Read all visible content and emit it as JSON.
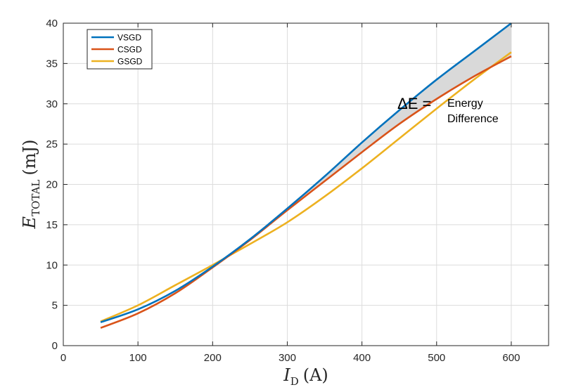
{
  "chart_data": {
    "type": "line",
    "xlabel": {
      "main": "I",
      "sub": "D",
      "unit": "(A)"
    },
    "ylabel": {
      "main": "E",
      "sub": "TOTAL",
      "unit": "(mJ)"
    },
    "xlim": [
      0,
      650
    ],
    "ylim": [
      0,
      40
    ],
    "xticks": [
      0,
      100,
      200,
      300,
      400,
      500,
      600
    ],
    "yticks": [
      0,
      5,
      10,
      15,
      20,
      25,
      30,
      35,
      40
    ],
    "grid": true,
    "legend_position": "top-left",
    "x": [
      50,
      100,
      150,
      200,
      250,
      300,
      350,
      400,
      450,
      500,
      550,
      600
    ],
    "series": [
      {
        "name": "VSGD",
        "color": "#0072BD",
        "values": [
          2.9,
          4.5,
          6.8,
          9.8,
          13.2,
          17.0,
          21.0,
          25.2,
          29.2,
          33.0,
          36.5,
          40.0
        ]
      },
      {
        "name": "CSGD",
        "color": "#D95319",
        "values": [
          2.2,
          4.0,
          6.5,
          9.7,
          13.1,
          16.8,
          20.4,
          24.0,
          27.5,
          30.6,
          33.4,
          35.9
        ]
      },
      {
        "name": "GSGD",
        "color": "#EDB120",
        "values": [
          3.0,
          5.0,
          7.5,
          10.0,
          12.6,
          15.3,
          18.5,
          22.0,
          25.7,
          29.4,
          33.0,
          36.4
        ]
      }
    ],
    "annotation": {
      "symbol": "ΔE =",
      "line1": "Energy",
      "line2": "Difference",
      "x": 450,
      "y": 29.5
    },
    "shade_between": [
      "VSGD",
      "CSGD"
    ],
    "shade_color": "#d9d9d9"
  }
}
